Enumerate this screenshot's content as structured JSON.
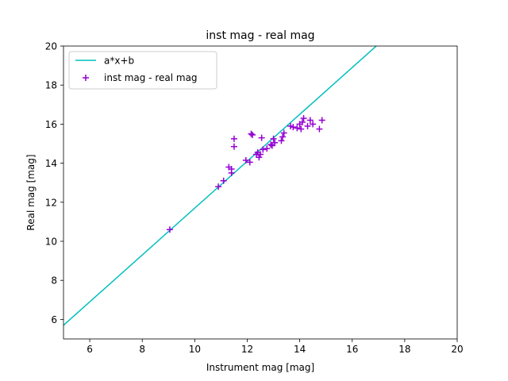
{
  "chart_data": {
    "type": "scatter",
    "title": "inst mag - real mag",
    "xlabel": "Instrument mag [mag]",
    "ylabel": "Real mag [mag]",
    "xlim": [
      5,
      20
    ],
    "ylim": [
      5,
      20
    ],
    "xticks": [
      "6",
      "8",
      "10",
      "12",
      "14",
      "16",
      "18",
      "20"
    ],
    "yticks": [
      "6",
      "8",
      "10",
      "12",
      "14",
      "16",
      "18",
      "20"
    ],
    "grid": false,
    "legend_position": "upper-left",
    "fit_line": {
      "name": "a*x+b",
      "color": "#00bfbf",
      "a": 1.2,
      "b": -0.3
    },
    "series": [
      {
        "name": "inst mag - real mag",
        "color": "#9400d3",
        "marker": "plus",
        "points": [
          [
            9.05,
            10.6
          ],
          [
            10.9,
            12.8
          ],
          [
            11.1,
            13.1
          ],
          [
            11.3,
            13.8
          ],
          [
            11.4,
            13.5
          ],
          [
            11.4,
            13.7
          ],
          [
            11.5,
            15.25
          ],
          [
            11.5,
            14.85
          ],
          [
            11.95,
            14.15
          ],
          [
            12.1,
            14.05
          ],
          [
            12.15,
            15.5
          ],
          [
            12.2,
            15.45
          ],
          [
            12.35,
            14.45
          ],
          [
            12.4,
            14.55
          ],
          [
            12.45,
            14.3
          ],
          [
            12.5,
            14.45
          ],
          [
            12.55,
            15.3
          ],
          [
            12.6,
            14.7
          ],
          [
            12.75,
            14.75
          ],
          [
            12.9,
            14.95
          ],
          [
            12.95,
            14.9
          ],
          [
            13.0,
            15.25
          ],
          [
            13.05,
            15.05
          ],
          [
            13.3,
            15.15
          ],
          [
            13.35,
            15.35
          ],
          [
            13.4,
            15.55
          ],
          [
            13.65,
            15.9
          ],
          [
            13.75,
            15.85
          ],
          [
            13.9,
            15.8
          ],
          [
            14.0,
            16.0
          ],
          [
            14.05,
            15.75
          ],
          [
            14.1,
            16.1
          ],
          [
            14.15,
            16.3
          ],
          [
            14.3,
            15.9
          ],
          [
            14.4,
            16.2
          ],
          [
            14.5,
            16.0
          ],
          [
            14.75,
            15.75
          ],
          [
            14.85,
            16.2
          ]
        ]
      }
    ]
  }
}
